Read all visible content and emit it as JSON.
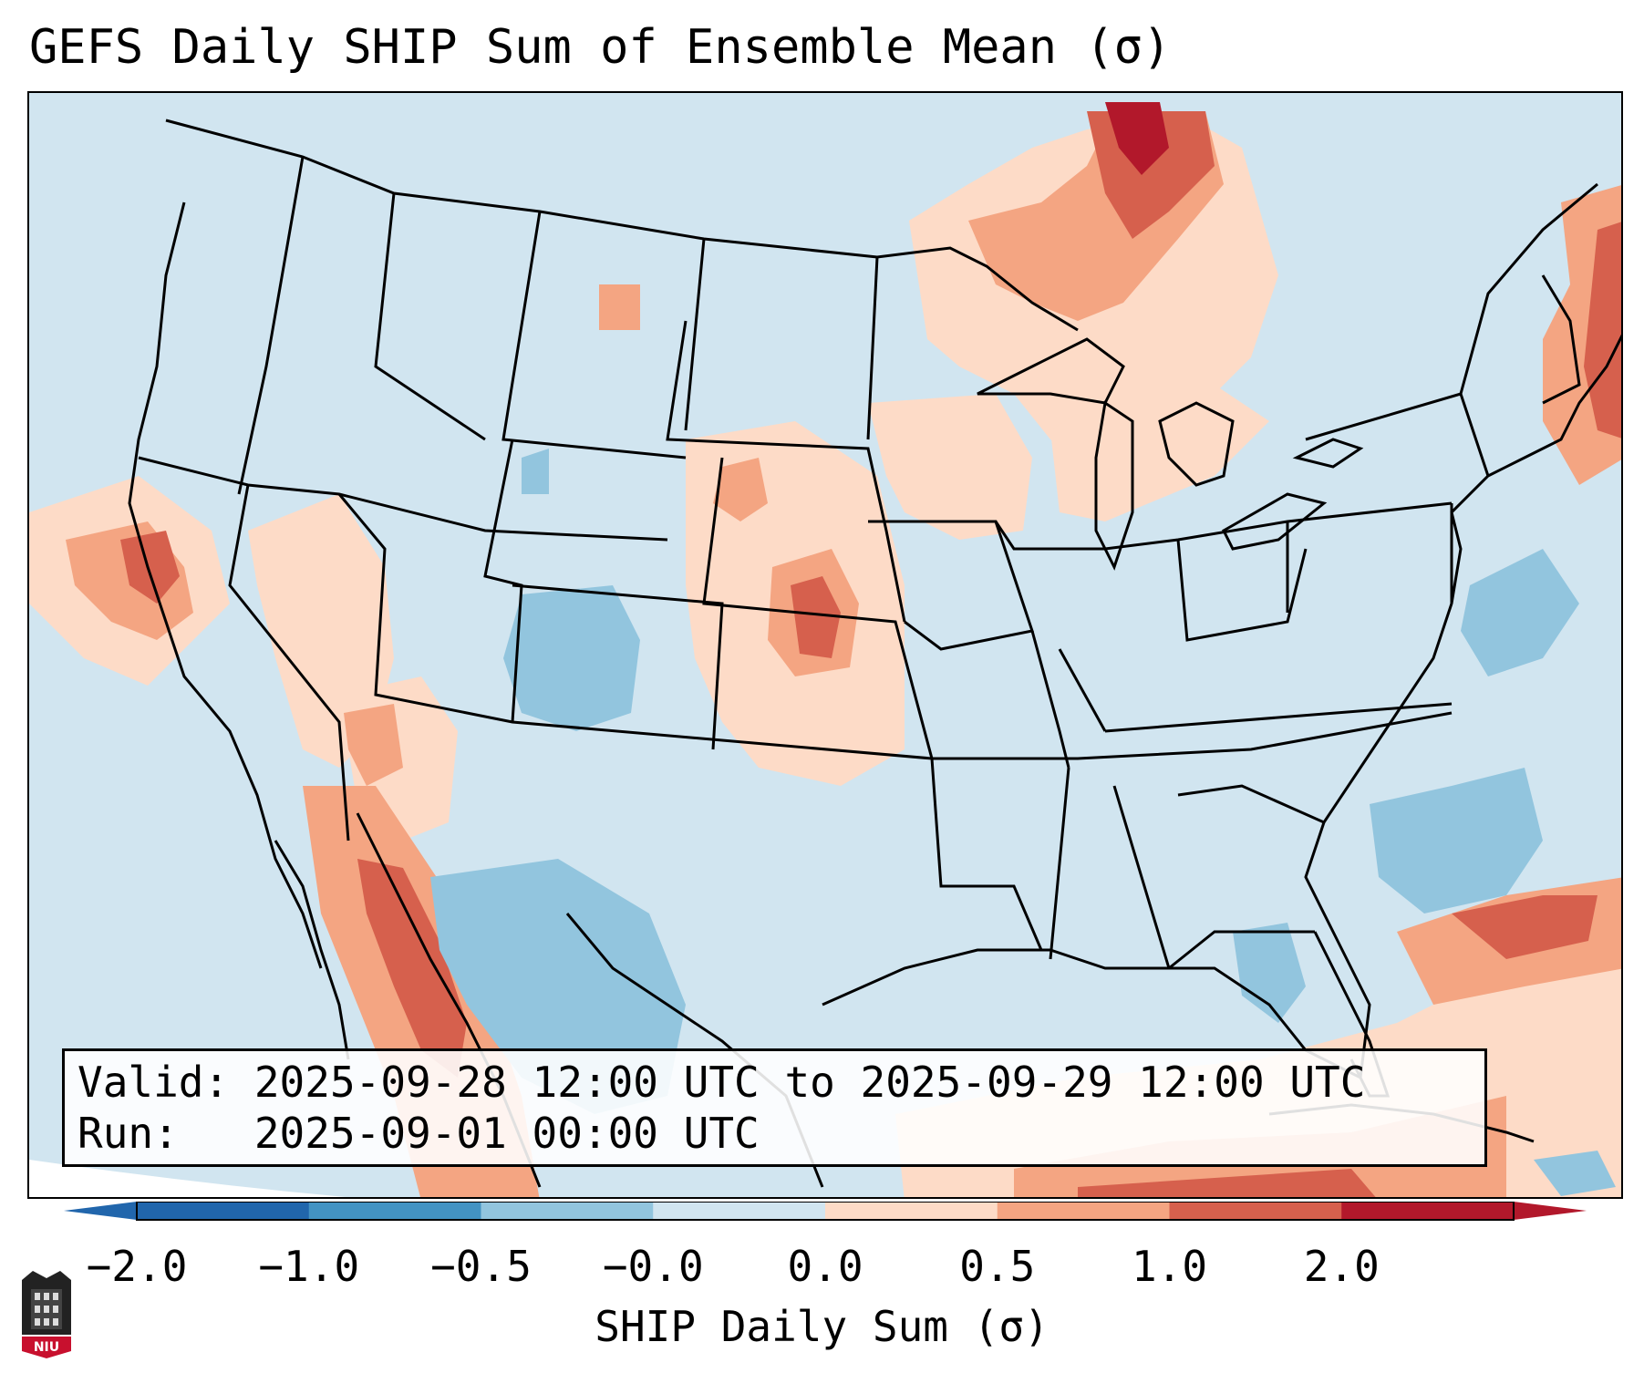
{
  "title": "GEFS Daily SHIP Sum of Ensemble Mean (σ)",
  "info": {
    "valid": "Valid: 2025-09-28 12:00 UTC to 2025-09-29 12:00 UTC",
    "run": "Run:   2025-09-01 00:00 UTC"
  },
  "colorbar": {
    "label": "SHIP Daily Sum (σ)",
    "ticks": [
      "−2.0",
      "−1.0",
      "−0.5",
      "−0.0",
      "0.0",
      "0.5",
      "1.0",
      "2.0"
    ],
    "bins": [
      "#2166ac",
      "#4393c3",
      "#92c5de",
      "#d1e5f0",
      "#fddbc7",
      "#f4a582",
      "#d6604d",
      "#b2182b"
    ],
    "under_color": "#2166ac",
    "over_color": "#b2182b",
    "extend": "both"
  },
  "map": {
    "projection": "Lambert Conformal (CONUS)",
    "background_color": "#d1e5f0",
    "logo": "NIU"
  }
}
